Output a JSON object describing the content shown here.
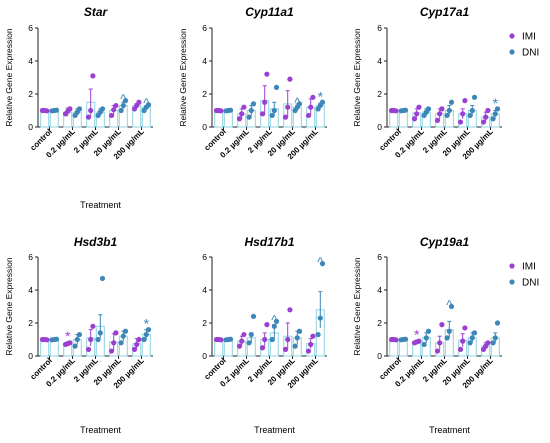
{
  "colors": {
    "imi": "#9b3fd1",
    "dni": "#3d86b8",
    "axis": "#222222",
    "marker": "#8fd3e3"
  },
  "legend": {
    "imi_label": "IMI",
    "dni_label": "DNI"
  },
  "chart_data": [
    {
      "type": "bar",
      "title": "Star",
      "xlabel": "Treatment",
      "ylabel": "Relative Gene Expression",
      "ylim": [
        0,
        6
      ],
      "yticks": [
        0,
        2,
        4,
        6
      ],
      "categories": [
        "control",
        "0.2 µg/mL",
        "2 µg/mL",
        "20 µg/mL",
        "200 µg/mL"
      ],
      "series": [
        {
          "name": "IMI",
          "values": [
            1.0,
            0.9,
            1.5,
            1.0,
            1.3
          ],
          "errors": [
            0.03,
            0.25,
            0.8,
            0.3,
            0.12
          ],
          "points": [
            [
              1.0,
              1.0,
              0.98
            ],
            [
              0.8,
              0.95,
              1.1
            ],
            [
              0.6,
              1.0,
              3.1
            ],
            [
              0.7,
              1.05,
              1.3
            ],
            [
              1.1,
              1.3,
              1.5
            ]
          ]
        },
        {
          "name": "DNI",
          "values": [
            1.0,
            0.9,
            0.9,
            1.3,
            1.2
          ],
          "errors": [
            0.03,
            0.2,
            0.2,
            0.2,
            0.1
          ],
          "points": [
            [
              0.98,
              1.0,
              1.02
            ],
            [
              0.7,
              0.9,
              1.1
            ],
            [
              0.7,
              0.9,
              1.1
            ],
            [
              1.0,
              1.3,
              1.6
            ],
            [
              1.0,
              1.2,
              1.35
            ]
          ]
        }
      ],
      "annotations": [
        {
          "category": "20 µg/mL",
          "series": "DNI",
          "text": "^"
        },
        {
          "category": "200 µg/mL",
          "series": "DNI",
          "text": "^"
        }
      ]
    },
    {
      "type": "bar",
      "title": "Cyp11a1",
      "xlabel": "",
      "ylabel": "Relative Gene Expression",
      "ylim": [
        0,
        6
      ],
      "yticks": [
        0,
        2,
        4,
        6
      ],
      "categories": [
        "control",
        "0.2 µg/mL",
        "2 µg/mL",
        "20 µg/mL",
        "200 µg/mL"
      ],
      "series": [
        {
          "name": "IMI",
          "values": [
            1.0,
            0.8,
            1.6,
            1.4,
            1.2
          ],
          "errors": [
            0.03,
            0.3,
            0.9,
            0.8,
            0.5
          ],
          "points": [
            [
              1.0,
              1.0,
              0.98
            ],
            [
              0.5,
              0.8,
              1.2
            ],
            [
              0.8,
              1.5,
              3.2
            ],
            [
              0.6,
              1.2,
              2.9
            ],
            [
              0.7,
              1.2,
              1.8
            ]
          ]
        },
        {
          "name": "DNI",
          "values": [
            1.0,
            1.0,
            1.1,
            1.2,
            1.3
          ],
          "errors": [
            0.03,
            0.3,
            0.4,
            0.2,
            0.15
          ],
          "points": [
            [
              0.98,
              1.0,
              1.02
            ],
            [
              0.6,
              1.0,
              1.4
            ],
            [
              0.7,
              1.0,
              2.4
            ],
            [
              1.0,
              1.2,
              1.4
            ],
            [
              1.1,
              1.3,
              1.5
            ]
          ]
        }
      ],
      "annotations": [
        {
          "category": "20 µg/mL",
          "series": "DNI",
          "text": "^"
        },
        {
          "category": "200 µg/mL",
          "series": "DNI",
          "text": "*"
        }
      ]
    },
    {
      "type": "bar",
      "title": "Cyp17a1",
      "xlabel": "",
      "ylabel": "Relative Gene Expression",
      "ylim": [
        0,
        6
      ],
      "yticks": [
        0,
        2,
        4,
        6
      ],
      "categories": [
        "control",
        "0.2 µg/mL",
        "2 µg/mL",
        "20 µg/mL",
        "200 µg/mL"
      ],
      "series": [
        {
          "name": "IMI",
          "values": [
            1.0,
            0.85,
            0.8,
            0.8,
            0.6
          ],
          "errors": [
            0.03,
            0.25,
            0.3,
            0.3,
            0.3
          ],
          "points": [
            [
              1.0,
              1.0,
              0.98
            ],
            [
              0.5,
              0.8,
              1.2
            ],
            [
              0.4,
              0.8,
              1.1
            ],
            [
              0.3,
              0.8,
              1.6
            ],
            [
              0.3,
              0.6,
              1.0
            ]
          ]
        },
        {
          "name": "DNI",
          "values": [
            1.0,
            0.9,
            1.0,
            1.0,
            0.8
          ],
          "errors": [
            0.03,
            0.2,
            0.3,
            0.3,
            0.2
          ],
          "points": [
            [
              0.98,
              1.0,
              1.02
            ],
            [
              0.7,
              0.9,
              1.1
            ],
            [
              0.7,
              1.0,
              1.5
            ],
            [
              0.7,
              1.0,
              1.8
            ],
            [
              0.5,
              0.8,
              1.1
            ]
          ]
        }
      ],
      "annotations": [
        {
          "category": "200 µg/mL",
          "series": "DNI",
          "text": "*"
        }
      ]
    },
    {
      "type": "bar",
      "title": "Hsd3b1",
      "xlabel": "Treatment",
      "ylabel": "Relative Gene Expression",
      "ylim": [
        0,
        6
      ],
      "yticks": [
        0,
        2,
        4,
        6
      ],
      "categories": [
        "control",
        "0.2 µg/mL",
        "2 µg/mL",
        "20 µg/mL",
        "200 µg/mL"
      ],
      "series": [
        {
          "name": "IMI",
          "values": [
            1.0,
            0.75,
            1.1,
            0.85,
            0.75
          ],
          "errors": [
            0.03,
            0.1,
            0.5,
            0.5,
            0.3
          ],
          "points": [
            [
              1.0,
              1.0,
              0.98
            ],
            [
              0.7,
              0.75,
              0.8
            ],
            [
              0.4,
              1.0,
              1.8
            ],
            [
              0.3,
              0.8,
              1.4
            ],
            [
              0.4,
              0.7,
              1.0
            ]
          ]
        },
        {
          "name": "DNI",
          "values": [
            1.0,
            1.0,
            1.8,
            1.2,
            1.3
          ],
          "errors": [
            0.03,
            0.3,
            0.7,
            0.3,
            0.3
          ],
          "points": [
            [
              0.98,
              1.0,
              1.02
            ],
            [
              0.6,
              1.0,
              1.3
            ],
            [
              1.0,
              1.4,
              4.7
            ],
            [
              0.8,
              1.2,
              1.5
            ],
            [
              1.0,
              1.3,
              1.6
            ]
          ]
        }
      ],
      "annotations": [
        {
          "category": "0.2 µg/mL",
          "series": "IMI",
          "text": "*"
        },
        {
          "category": "200 µg/mL",
          "series": "DNI",
          "text": "*"
        }
      ]
    },
    {
      "type": "bar",
      "title": "Hsd17b1",
      "xlabel": "Treatment",
      "ylabel": "",
      "ylim": [
        0,
        6
      ],
      "yticks": [
        0,
        2,
        4,
        6
      ],
      "categories": [
        "control",
        "0.2 µg/mL",
        "2 µg/mL",
        "20 µg/mL",
        "200 µg/mL"
      ],
      "series": [
        {
          "name": "IMI",
          "values": [
            1.0,
            0.9,
            1.0,
            1.2,
            0.75
          ],
          "errors": [
            0.03,
            0.3,
            0.4,
            0.8,
            0.3
          ],
          "points": [
            [
              1.0,
              1.0,
              0.98
            ],
            [
              0.6,
              0.9,
              1.3
            ],
            [
              0.5,
              1.0,
              1.9
            ],
            [
              0.4,
              1.0,
              2.8
            ],
            [
              0.3,
              0.7,
              1.2
            ]
          ]
        },
        {
          "name": "DNI",
          "values": [
            1.0,
            1.1,
            1.4,
            1.1,
            2.8
          ],
          "errors": [
            0.03,
            0.3,
            0.5,
            0.4,
            1.1
          ],
          "points": [
            [
              0.98,
              1.0,
              1.02
            ],
            [
              0.8,
              1.3,
              2.4
            ],
            [
              1.0,
              1.8,
              2.1
            ],
            [
              0.6,
              1.1,
              1.5
            ],
            [
              1.3,
              2.3,
              5.6
            ]
          ]
        }
      ],
      "annotations": [
        {
          "category": "2 µg/mL",
          "series": "DNI",
          "text": "^"
        },
        {
          "category": "200 µg/mL",
          "series": "DNI",
          "text": "^"
        }
      ]
    },
    {
      "type": "bar",
      "title": "Cyp19a1",
      "xlabel": "Treatment",
      "ylabel": "Relative Gene Expression",
      "ylim": [
        0,
        6
      ],
      "yticks": [
        0,
        2,
        4,
        6
      ],
      "categories": [
        "control",
        "0.2 µg/mL",
        "2 µg/mL",
        "20 µg/mL",
        "200 µg/mL"
      ],
      "series": [
        {
          "name": "IMI",
          "values": [
            1.0,
            0.85,
            0.8,
            0.95,
            0.6
          ],
          "errors": [
            0.03,
            0.1,
            0.4,
            0.4,
            0.2
          ],
          "points": [
            [
              1.0,
              1.0,
              0.98
            ],
            [
              0.8,
              0.85,
              0.9
            ],
            [
              0.3,
              0.8,
              1.9
            ],
            [
              0.4,
              0.9,
              1.7
            ],
            [
              0.4,
              0.6,
              0.8
            ]
          ]
        },
        {
          "name": "DNI",
          "values": [
            1.0,
            1.1,
            1.6,
            1.1,
            1.1
          ],
          "errors": [
            0.03,
            0.3,
            0.5,
            0.3,
            0.3
          ],
          "points": [
            [
              0.98,
              1.0,
              1.02
            ],
            [
              0.7,
              1.1,
              1.5
            ],
            [
              1.1,
              1.5,
              3.0
            ],
            [
              0.8,
              1.1,
              1.4
            ],
            [
              0.8,
              1.1,
              2.0
            ]
          ]
        }
      ],
      "annotations": [
        {
          "category": "0.2 µg/mL",
          "series": "IMI",
          "text": "*"
        },
        {
          "category": "2 µg/mL",
          "series": "DNI",
          "text": "^"
        }
      ]
    }
  ]
}
